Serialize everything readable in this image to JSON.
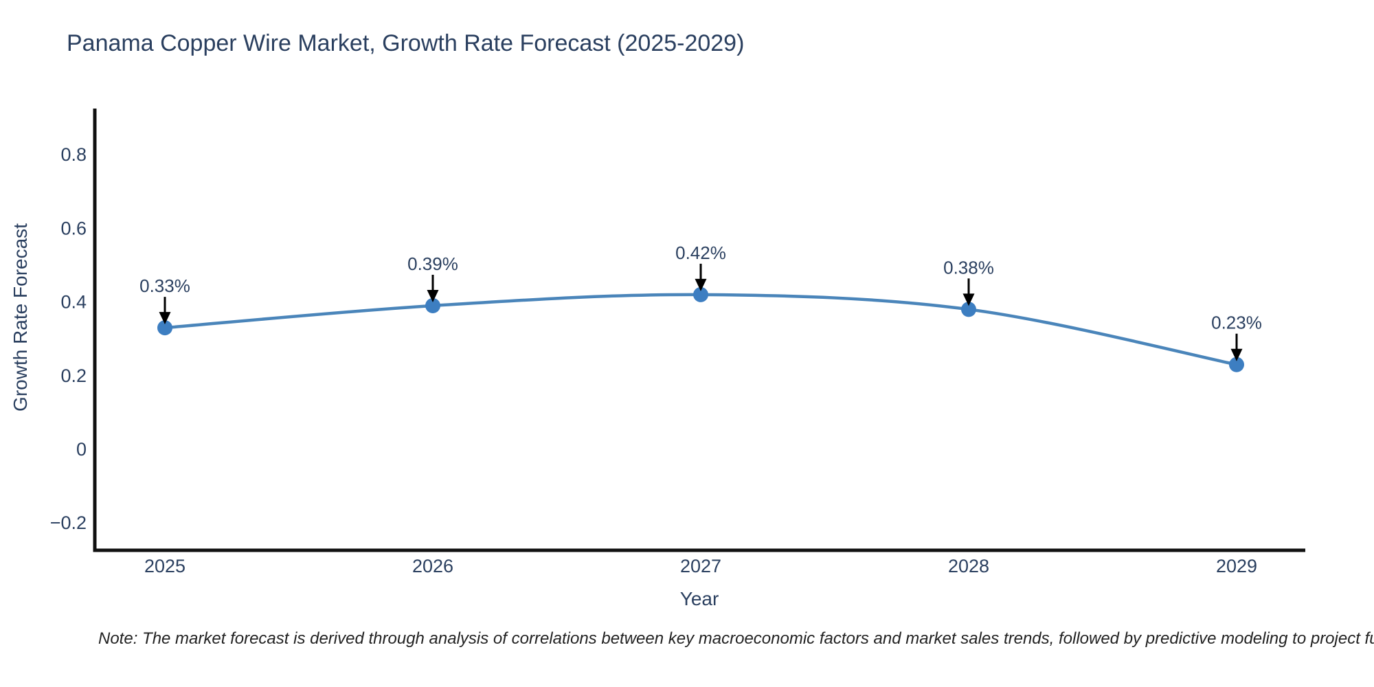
{
  "chart": {
    "title": "Panama Copper Wire Market, Growth Rate Forecast (2025-2029)",
    "xlabel": "Year",
    "ylabel": "Growth Rate Forecast",
    "note": "Note: The market forecast is derived through analysis of correlations between key macroeconomic factors and market sales trends, followed by predictive modeling to project future sa"
  },
  "chart_data": {
    "type": "line",
    "title": "Panama Copper Wire Market, Growth Rate Forecast (2025-2029)",
    "xlabel": "Year",
    "ylabel": "Growth Rate Forecast",
    "categories": [
      "2025",
      "2026",
      "2027",
      "2028",
      "2029"
    ],
    "values": [
      0.33,
      0.39,
      0.42,
      0.38,
      0.23
    ],
    "point_labels": [
      "0.33%",
      "0.39%",
      "0.42%",
      "0.38%",
      "0.23%"
    ],
    "ytick_labels": [
      "0.8",
      "0.6",
      "0.4",
      "0.2",
      "0",
      "−0.2"
    ],
    "ytick_values": [
      0.8,
      0.6,
      0.4,
      0.2,
      0,
      -0.2
    ],
    "ylim": [
      -0.27,
      0.93
    ],
    "grid": false,
    "legend": false,
    "line_shape": "spline",
    "line_color": "#4a85ba",
    "marker_color": "#3d7ec1",
    "text_color": "#2a3f5f",
    "axis_color": "#111111",
    "arrow_color": "#000000",
    "background_color": "#ffffff"
  }
}
